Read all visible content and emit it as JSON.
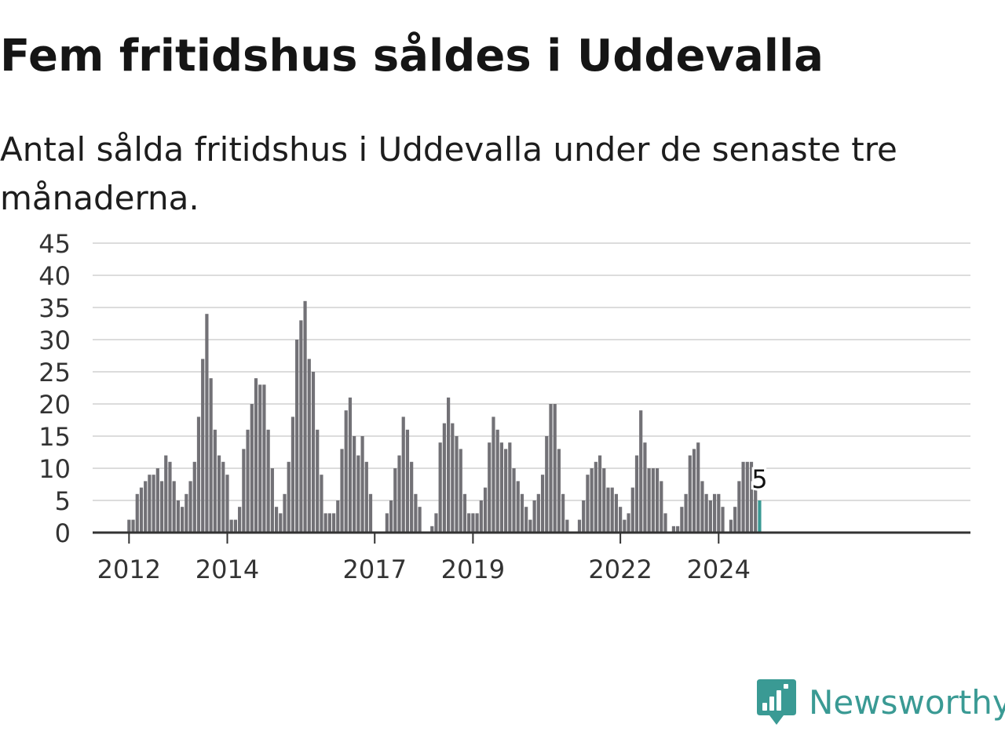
{
  "title": "Fem fritidshus såldes i Uddevalla",
  "subtitle": "Antal sålda fritidshus i Uddevalla under de senaste tre månaderna.",
  "colors": {
    "bar": "#727176",
    "highlight": "#3a9a94",
    "grid": "#dcdcdc",
    "axis": "#333333",
    "text": "#333333"
  },
  "chart_data": {
    "type": "bar",
    "title": "Fem fritidshus såldes i Uddevalla",
    "subtitle": "Antal sålda fritidshus i Uddevalla under de senaste tre månaderna.",
    "xlabel": "",
    "ylabel": "",
    "ylim": [
      0,
      45
    ],
    "yticks": [
      0,
      5,
      10,
      15,
      20,
      25,
      30,
      35,
      40,
      45
    ],
    "grid": true,
    "legend": "none",
    "x_start": "2011-05",
    "x_ticks": [
      {
        "label": "2012",
        "month": "2012-01"
      },
      {
        "label": "2014",
        "month": "2014-01"
      },
      {
        "label": "2017",
        "month": "2017-01"
      },
      {
        "label": "2019",
        "month": "2019-01"
      },
      {
        "label": "2022",
        "month": "2022-01"
      },
      {
        "label": "2024",
        "month": "2024-01"
      }
    ],
    "values": [
      0,
      0,
      0,
      0,
      0,
      0,
      0,
      0,
      2,
      2,
      6,
      7,
      8,
      9,
      9,
      10,
      8,
      12,
      11,
      8,
      5,
      4,
      6,
      8,
      11,
      18,
      27,
      34,
      24,
      16,
      12,
      11,
      9,
      2,
      2,
      4,
      13,
      16,
      20,
      24,
      23,
      23,
      16,
      10,
      4,
      3,
      6,
      11,
      18,
      30,
      33,
      36,
      27,
      25,
      16,
      9,
      3,
      3,
      3,
      5,
      13,
      19,
      21,
      15,
      12,
      15,
      11,
      6,
      0,
      0,
      0,
      3,
      5,
      10,
      12,
      18,
      16,
      11,
      6,
      4,
      0,
      0,
      1,
      3,
      14,
      17,
      21,
      17,
      15,
      13,
      6,
      3,
      3,
      3,
      5,
      7,
      14,
      18,
      16,
      14,
      13,
      14,
      10,
      8,
      6,
      4,
      2,
      5,
      6,
      9,
      15,
      20,
      20,
      13,
      6,
      2,
      0,
      0,
      2,
      5,
      9,
      10,
      11,
      12,
      10,
      7,
      7,
      6,
      4,
      2,
      3,
      7,
      12,
      19,
      14,
      10,
      10,
      10,
      8,
      3,
      0,
      1,
      1,
      4,
      6,
      12,
      13,
      14,
      8,
      6,
      5,
      6,
      6,
      4,
      0,
      2,
      4,
      8,
      11,
      11,
      11,
      7,
      5
    ],
    "highlight_last": 1,
    "label_last": "5"
  },
  "logo": {
    "text": "Newsworthy",
    "icon": "newsworthy-logo-icon"
  }
}
